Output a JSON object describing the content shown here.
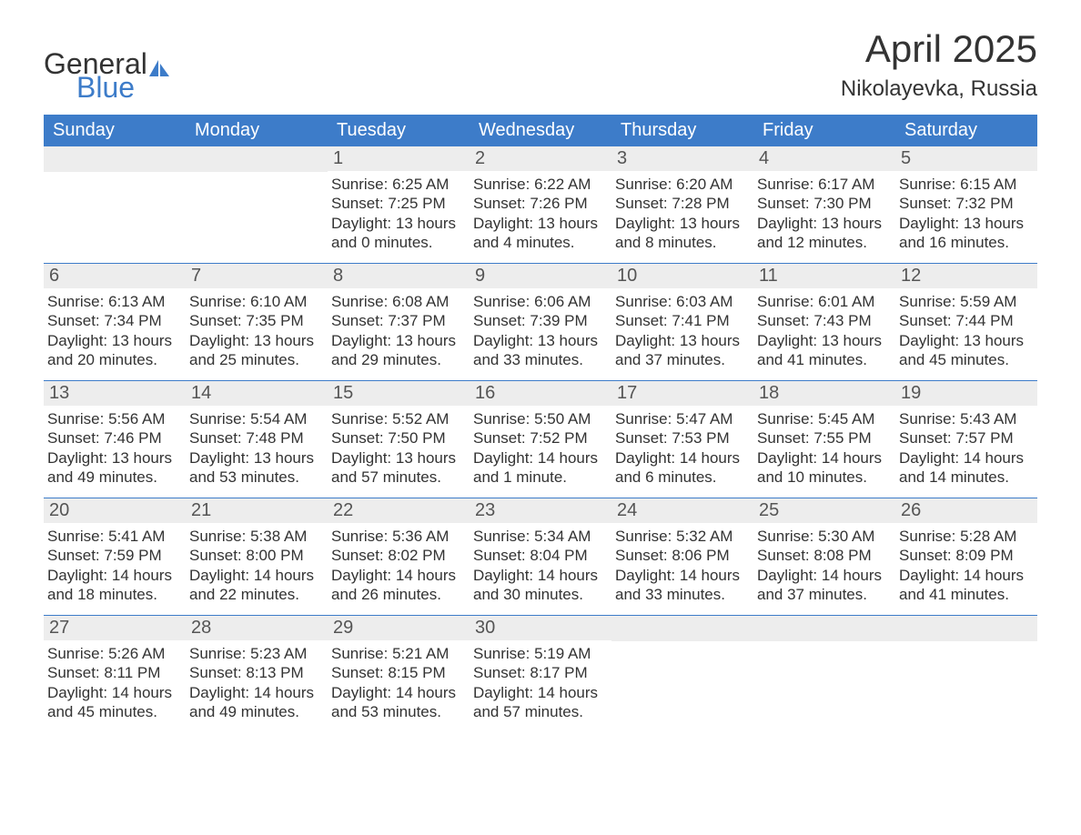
{
  "logo": {
    "general": "General",
    "blue": "Blue",
    "sail_color": "#3d7cc9"
  },
  "title": "April 2025",
  "location": "Nikolayevka, Russia",
  "colors": {
    "header_bg": "#3d7cc9",
    "header_text": "#ffffff",
    "daynum_bg": "#ededed",
    "daynum_text": "#555555",
    "body_text": "#333333",
    "week_border": "#3d7cc9",
    "background": "#ffffff"
  },
  "typography": {
    "title_fontsize": 42,
    "location_fontsize": 24,
    "dayheader_fontsize": 20,
    "daynum_fontsize": 20,
    "body_fontsize": 17
  },
  "day_headers": [
    "Sunday",
    "Monday",
    "Tuesday",
    "Wednesday",
    "Thursday",
    "Friday",
    "Saturday"
  ],
  "weeks": [
    [
      null,
      null,
      {
        "n": "1",
        "sr": "Sunrise: 6:25 AM",
        "ss": "Sunset: 7:25 PM",
        "dl": "Daylight: 13 hours and 0 minutes."
      },
      {
        "n": "2",
        "sr": "Sunrise: 6:22 AM",
        "ss": "Sunset: 7:26 PM",
        "dl": "Daylight: 13 hours and 4 minutes."
      },
      {
        "n": "3",
        "sr": "Sunrise: 6:20 AM",
        "ss": "Sunset: 7:28 PM",
        "dl": "Daylight: 13 hours and 8 minutes."
      },
      {
        "n": "4",
        "sr": "Sunrise: 6:17 AM",
        "ss": "Sunset: 7:30 PM",
        "dl": "Daylight: 13 hours and 12 minutes."
      },
      {
        "n": "5",
        "sr": "Sunrise: 6:15 AM",
        "ss": "Sunset: 7:32 PM",
        "dl": "Daylight: 13 hours and 16 minutes."
      }
    ],
    [
      {
        "n": "6",
        "sr": "Sunrise: 6:13 AM",
        "ss": "Sunset: 7:34 PM",
        "dl": "Daylight: 13 hours and 20 minutes."
      },
      {
        "n": "7",
        "sr": "Sunrise: 6:10 AM",
        "ss": "Sunset: 7:35 PM",
        "dl": "Daylight: 13 hours and 25 minutes."
      },
      {
        "n": "8",
        "sr": "Sunrise: 6:08 AM",
        "ss": "Sunset: 7:37 PM",
        "dl": "Daylight: 13 hours and 29 minutes."
      },
      {
        "n": "9",
        "sr": "Sunrise: 6:06 AM",
        "ss": "Sunset: 7:39 PM",
        "dl": "Daylight: 13 hours and 33 minutes."
      },
      {
        "n": "10",
        "sr": "Sunrise: 6:03 AM",
        "ss": "Sunset: 7:41 PM",
        "dl": "Daylight: 13 hours and 37 minutes."
      },
      {
        "n": "11",
        "sr": "Sunrise: 6:01 AM",
        "ss": "Sunset: 7:43 PM",
        "dl": "Daylight: 13 hours and 41 minutes."
      },
      {
        "n": "12",
        "sr": "Sunrise: 5:59 AM",
        "ss": "Sunset: 7:44 PM",
        "dl": "Daylight: 13 hours and 45 minutes."
      }
    ],
    [
      {
        "n": "13",
        "sr": "Sunrise: 5:56 AM",
        "ss": "Sunset: 7:46 PM",
        "dl": "Daylight: 13 hours and 49 minutes."
      },
      {
        "n": "14",
        "sr": "Sunrise: 5:54 AM",
        "ss": "Sunset: 7:48 PM",
        "dl": "Daylight: 13 hours and 53 minutes."
      },
      {
        "n": "15",
        "sr": "Sunrise: 5:52 AM",
        "ss": "Sunset: 7:50 PM",
        "dl": "Daylight: 13 hours and 57 minutes."
      },
      {
        "n": "16",
        "sr": "Sunrise: 5:50 AM",
        "ss": "Sunset: 7:52 PM",
        "dl": "Daylight: 14 hours and 1 minute."
      },
      {
        "n": "17",
        "sr": "Sunrise: 5:47 AM",
        "ss": "Sunset: 7:53 PM",
        "dl": "Daylight: 14 hours and 6 minutes."
      },
      {
        "n": "18",
        "sr": "Sunrise: 5:45 AM",
        "ss": "Sunset: 7:55 PM",
        "dl": "Daylight: 14 hours and 10 minutes."
      },
      {
        "n": "19",
        "sr": "Sunrise: 5:43 AM",
        "ss": "Sunset: 7:57 PM",
        "dl": "Daylight: 14 hours and 14 minutes."
      }
    ],
    [
      {
        "n": "20",
        "sr": "Sunrise: 5:41 AM",
        "ss": "Sunset: 7:59 PM",
        "dl": "Daylight: 14 hours and 18 minutes."
      },
      {
        "n": "21",
        "sr": "Sunrise: 5:38 AM",
        "ss": "Sunset: 8:00 PM",
        "dl": "Daylight: 14 hours and 22 minutes."
      },
      {
        "n": "22",
        "sr": "Sunrise: 5:36 AM",
        "ss": "Sunset: 8:02 PM",
        "dl": "Daylight: 14 hours and 26 minutes."
      },
      {
        "n": "23",
        "sr": "Sunrise: 5:34 AM",
        "ss": "Sunset: 8:04 PM",
        "dl": "Daylight: 14 hours and 30 minutes."
      },
      {
        "n": "24",
        "sr": "Sunrise: 5:32 AM",
        "ss": "Sunset: 8:06 PM",
        "dl": "Daylight: 14 hours and 33 minutes."
      },
      {
        "n": "25",
        "sr": "Sunrise: 5:30 AM",
        "ss": "Sunset: 8:08 PM",
        "dl": "Daylight: 14 hours and 37 minutes."
      },
      {
        "n": "26",
        "sr": "Sunrise: 5:28 AM",
        "ss": "Sunset: 8:09 PM",
        "dl": "Daylight: 14 hours and 41 minutes."
      }
    ],
    [
      {
        "n": "27",
        "sr": "Sunrise: 5:26 AM",
        "ss": "Sunset: 8:11 PM",
        "dl": "Daylight: 14 hours and 45 minutes."
      },
      {
        "n": "28",
        "sr": "Sunrise: 5:23 AM",
        "ss": "Sunset: 8:13 PM",
        "dl": "Daylight: 14 hours and 49 minutes."
      },
      {
        "n": "29",
        "sr": "Sunrise: 5:21 AM",
        "ss": "Sunset: 8:15 PM",
        "dl": "Daylight: 14 hours and 53 minutes."
      },
      {
        "n": "30",
        "sr": "Sunrise: 5:19 AM",
        "ss": "Sunset: 8:17 PM",
        "dl": "Daylight: 14 hours and 57 minutes."
      },
      null,
      null,
      null
    ]
  ]
}
